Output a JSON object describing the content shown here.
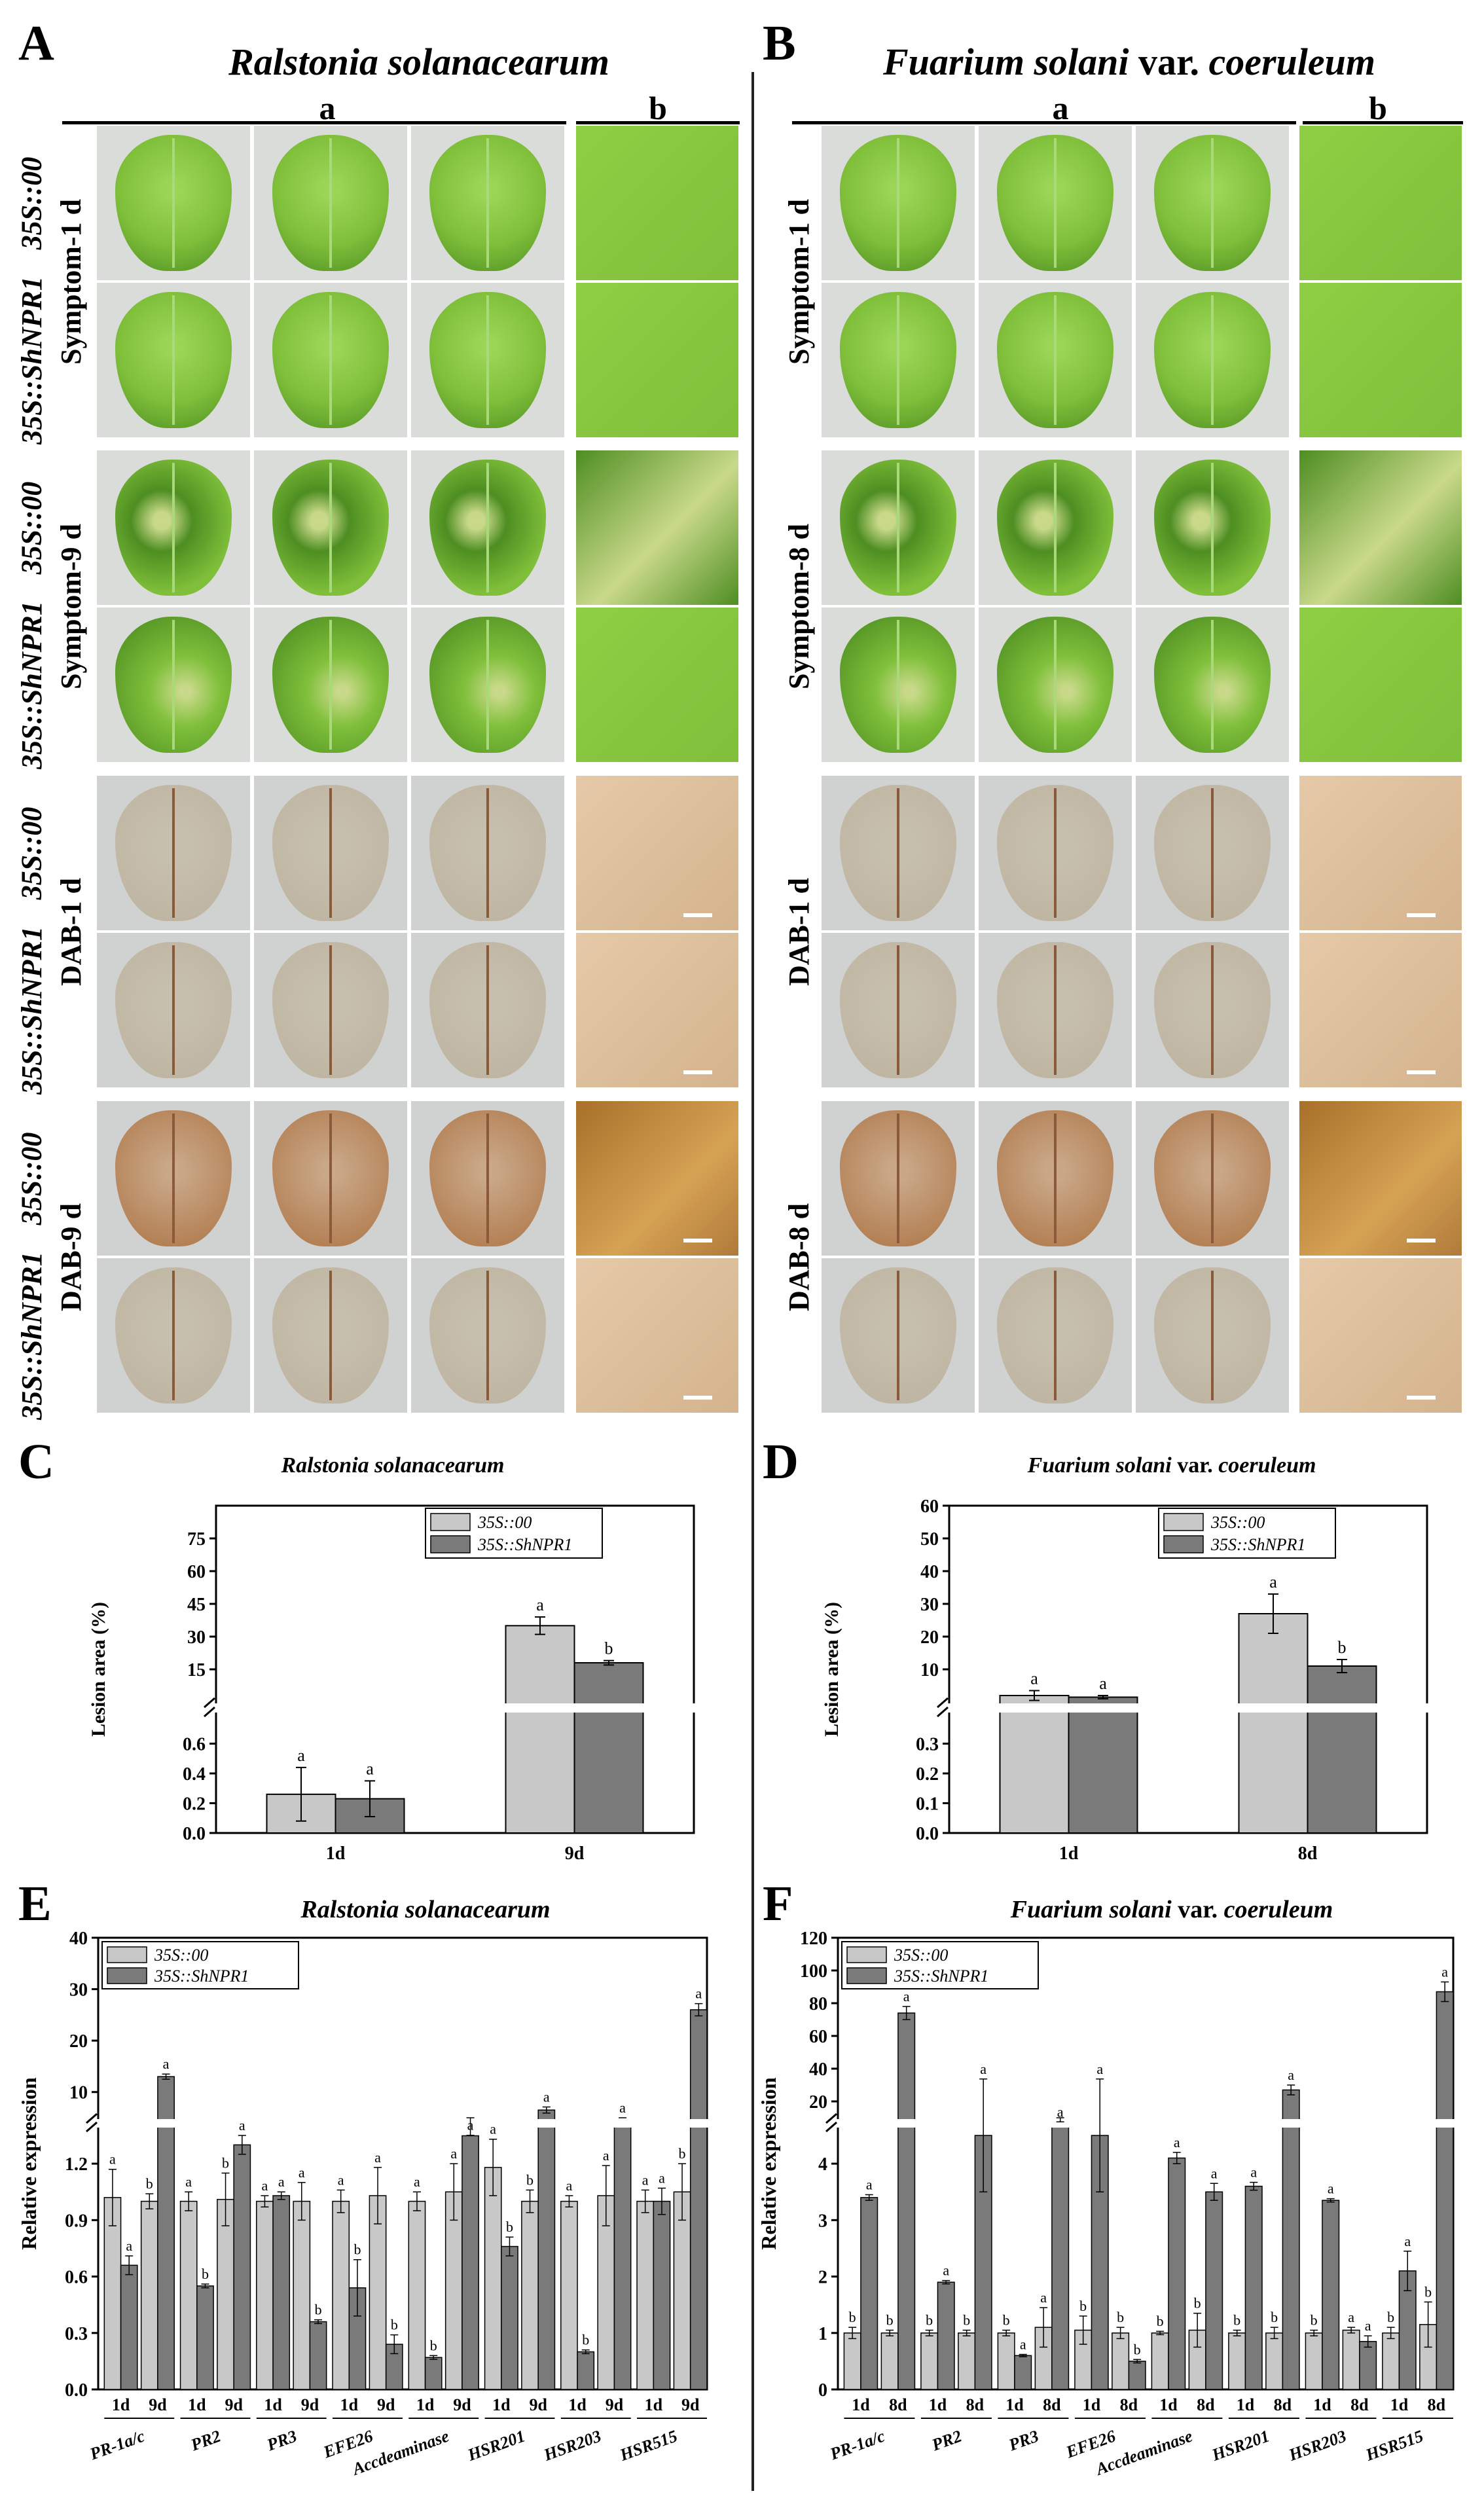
{
  "panels": {
    "A": "A",
    "B": "B",
    "C": "C",
    "D": "D",
    "E": "E",
    "F": "F"
  },
  "titles": {
    "A": "Ralstonia solanacearum",
    "B_italic1": "Fuarium solani",
    "B_plain": " var. ",
    "B_italic2": "coeruleum",
    "C": "Ralstonia solanacearum",
    "D_italic1": "Fuarium solani",
    "D_plain": " var. ",
    "D_italic2": "coeruleum",
    "E": "Ralstonia solanacearum",
    "F_italic1": "Fuarium solani",
    "F_plain": " var. ",
    "F_italic2": "coeruleum"
  },
  "column_headers": {
    "a": "a",
    "b": "b"
  },
  "genotypes": {
    "control": "35S::00",
    "overexp": "35S::ShNPR1"
  },
  "row_groups": {
    "A": [
      "Symptom-1 d",
      "Symptom-9 d",
      "DAB-1 d",
      "DAB-9 d"
    ],
    "B": [
      "Symptom-1 d",
      "Symptom-8 d",
      "DAB-1 d",
      "DAB-8 d"
    ]
  },
  "colors": {
    "leaf_healthy": "#7fbf3a",
    "leaf_dark": "#4e8e22",
    "leaf_lesion": "#c9d98a",
    "dab_leaf": "#bdb3a0",
    "dab_stained": "#b07a4c",
    "bar_light": "#c8c8c8",
    "bar_dark": "#7a7a7a"
  },
  "chart_data": [
    {
      "id": "C",
      "type": "bar",
      "title": "Ralstonia solanacearum",
      "ylabel": "Lesion area (%)",
      "categories": [
        "1d",
        "9d"
      ],
      "series": [
        {
          "name": "35S::00",
          "values": [
            0.26,
            35
          ],
          "errors": [
            0.18,
            4
          ],
          "letters": [
            "a",
            "a"
          ]
        },
        {
          "name": "35S::ShNPR1",
          "values": [
            0.23,
            18
          ],
          "errors": [
            0.12,
            1
          ],
          "letters": [
            "a",
            "b"
          ]
        }
      ],
      "ylim_lower": [
        0,
        0.8
      ],
      "ylim_upper": [
        0,
        90
      ],
      "yticks_lower": [
        "0.0",
        "0.2",
        "0.4",
        "0.6"
      ],
      "yticks_upper": [
        "15",
        "30",
        "45",
        "60",
        "75"
      ],
      "legend": "top-right"
    },
    {
      "id": "D",
      "type": "bar",
      "title": "Fuarium solani var. coeruleum",
      "ylabel": "Lesion area (%)",
      "categories": [
        "1d",
        "8d"
      ],
      "series": [
        {
          "name": "35S::00",
          "values": [
            2,
            27
          ],
          "errors": [
            1.5,
            6
          ],
          "letters": [
            "a",
            "a"
          ]
        },
        {
          "name": "35S::ShNPR1",
          "values": [
            1.5,
            11
          ],
          "errors": [
            0.5,
            2
          ],
          "letters": [
            "a",
            "b"
          ]
        }
      ],
      "ylim_lower": [
        0,
        0.4
      ],
      "ylim_upper": [
        0,
        60
      ],
      "yticks_lower": [
        "0.0",
        "0.1",
        "0.2",
        "0.3"
      ],
      "yticks_upper": [
        "10",
        "20",
        "30",
        "40",
        "50",
        "60"
      ],
      "legend": "top-right"
    },
    {
      "id": "E",
      "type": "bar",
      "title": "Ralstonia solanacearum",
      "ylabel": "Relative expression",
      "genes": [
        "PR-1a/c",
        "PR2",
        "PR3",
        "EFE26",
        "Accdeaminase",
        "HSR201",
        "HSR203",
        "HSR515"
      ],
      "timepoints": [
        "1d",
        "9d"
      ],
      "series": [
        {
          "name": "35S::00",
          "values": [
            [
              1.02,
              1.0
            ],
            [
              1.0,
              1.01
            ],
            [
              1.0,
              1.0
            ],
            [
              1.0,
              1.03
            ],
            [
              1.0,
              1.05
            ],
            [
              1.18,
              1.0
            ],
            [
              1.0,
              1.03
            ],
            [
              1.0,
              1.05
            ]
          ],
          "errors": [
            [
              0.15,
              0.04
            ],
            [
              0.05,
              0.14
            ],
            [
              0.03,
              0.1
            ],
            [
              0.06,
              0.15
            ],
            [
              0.05,
              0.15
            ],
            [
              0.15,
              0.06
            ],
            [
              0.03,
              0.16
            ],
            [
              0.06,
              0.15
            ]
          ],
          "letters": [
            [
              "a",
              "b"
            ],
            [
              "a",
              "b"
            ],
            [
              "a",
              "a"
            ],
            [
              "a",
              "a"
            ],
            [
              "a",
              "a"
            ],
            [
              "a",
              "b"
            ],
            [
              "a",
              "a"
            ],
            [
              "a",
              "b"
            ]
          ]
        },
        {
          "name": "35S::ShNPR1",
          "values": [
            [
              0.66,
              13
            ],
            [
              0.55,
              1.3
            ],
            [
              1.03,
              0.36
            ],
            [
              0.54,
              0.24
            ],
            [
              0.17,
              1.5
            ],
            [
              0.76,
              6.5
            ],
            [
              0.2,
              4.5
            ],
            [
              1.0,
              26
            ]
          ],
          "errors": [
            [
              0.05,
              0.5
            ],
            [
              0.01,
              0.05
            ],
            [
              0.02,
              0.01
            ],
            [
              0.15,
              0.05
            ],
            [
              0.01,
              0.1
            ],
            [
              0.05,
              0.6
            ],
            [
              0.01,
              0.5
            ],
            [
              0.07,
              1.2
            ]
          ],
          "letters": [
            [
              "a",
              "a"
            ],
            [
              "b",
              "a"
            ],
            [
              "a",
              "b"
            ],
            [
              "b",
              "b"
            ],
            [
              "b",
              "a"
            ],
            [
              "b",
              "a"
            ],
            [
              "b",
              "a"
            ],
            [
              "a",
              "a"
            ]
          ]
        }
      ],
      "yticks_lower": [
        "0.0",
        "0.3",
        "0.6",
        "0.9",
        "1.2"
      ],
      "yticks_upper": [
        "10",
        "20",
        "30",
        "40"
      ],
      "legend": "top-left"
    },
    {
      "id": "F",
      "type": "bar",
      "title": "Fuarium solani var. coeruleum",
      "ylabel": "Relative expression",
      "genes": [
        "PR-1a/c",
        "PR2",
        "PR3",
        "EFE26",
        "Accdeaminase",
        "HSR201",
        "HSR203",
        "HSR515"
      ],
      "timepoints": [
        "1d",
        "8d"
      ],
      "series": [
        {
          "name": "35S::00",
          "values": [
            [
              1.0,
              1.0
            ],
            [
              1.0,
              1.0
            ],
            [
              1.0,
              1.1
            ],
            [
              1.05,
              1.0
            ],
            [
              1.0,
              1.05
            ],
            [
              1.0,
              1.0
            ],
            [
              1.0,
              1.05
            ],
            [
              1.0,
              1.15
            ]
          ],
          "errors": [
            [
              0.1,
              0.05
            ],
            [
              0.05,
              0.05
            ],
            [
              0.05,
              0.35
            ],
            [
              0.25,
              0.1
            ],
            [
              0.03,
              0.3
            ],
            [
              0.05,
              0.1
            ],
            [
              0.05,
              0.05
            ],
            [
              0.1,
              0.4
            ]
          ],
          "letters": [
            [
              "b",
              "b"
            ],
            [
              "b",
              "b"
            ],
            [
              "b",
              "a"
            ],
            [
              "b",
              "b"
            ],
            [
              "b",
              "b"
            ],
            [
              "b",
              "b"
            ],
            [
              "b",
              "a"
            ],
            [
              "b",
              "b"
            ]
          ]
        },
        {
          "name": "35S::ShNPR1",
          "values": [
            [
              3.4,
              74
            ],
            [
              1.9,
              4.5
            ],
            [
              0.6,
              6
            ],
            [
              4.5,
              0.5
            ],
            [
              4.1,
              3.5
            ],
            [
              3.6,
              27
            ],
            [
              3.35,
              0.85
            ],
            [
              2.1,
              87
            ]
          ],
          "errors": [
            [
              0.05,
              4
            ],
            [
              0.03,
              1
            ],
            [
              0.02,
              1.5
            ],
            [
              1,
              0.03
            ],
            [
              0.1,
              0.15
            ],
            [
              0.07,
              3
            ],
            [
              0.03,
              0.1
            ],
            [
              0.35,
              6
            ]
          ],
          "letters": [
            [
              "a",
              "a"
            ],
            [
              "a",
              "a"
            ],
            [
              "a",
              "a"
            ],
            [
              "a",
              "b"
            ],
            [
              "a",
              "a"
            ],
            [
              "a",
              "a"
            ],
            [
              "a",
              "a"
            ],
            [
              "a",
              "a"
            ]
          ]
        }
      ],
      "yticks_lower": [
        "0",
        "1",
        "2",
        "3",
        "4"
      ],
      "yticks_upper": [
        "20",
        "40",
        "60",
        "80",
        "100",
        "120"
      ],
      "legend": "top-left"
    }
  ]
}
